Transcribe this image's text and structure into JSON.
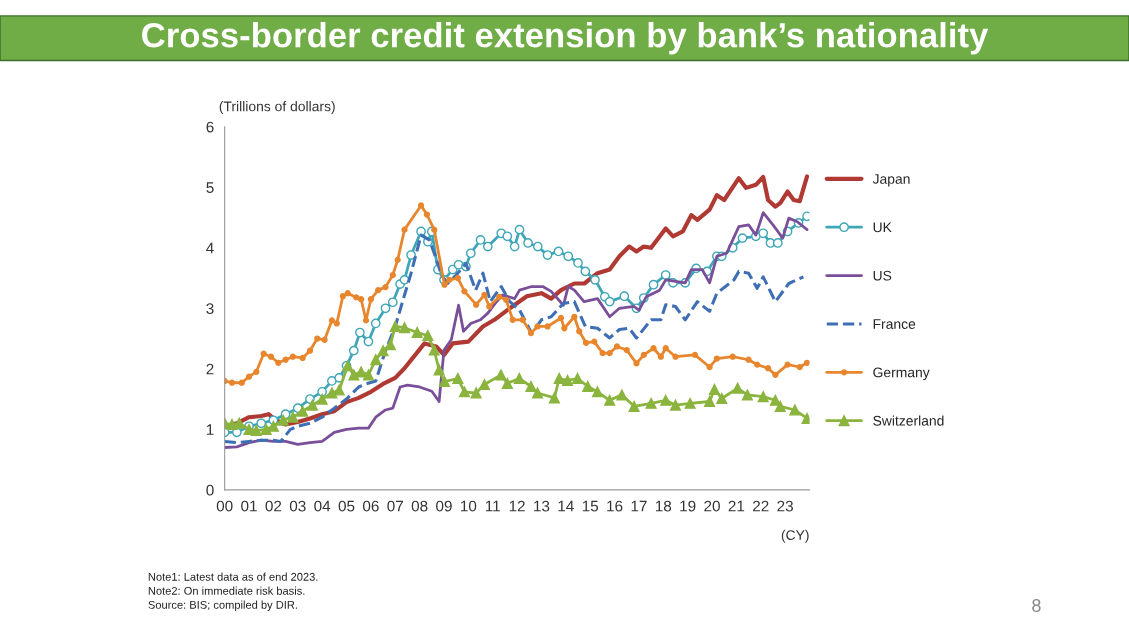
{
  "chart_data": {
    "type": "line",
    "title": "Cross-border credit extension by bank’s nationality",
    "ylabel": "(Trillions of dollars)",
    "xlabel": "(CY)",
    "xlim": [
      2000,
      2024
    ],
    "xticks": [
      {
        "value": 2000,
        "label": "00"
      },
      {
        "value": 2001,
        "label": "01"
      },
      {
        "value": 2002,
        "label": "02"
      },
      {
        "value": 2003,
        "label": "03"
      },
      {
        "value": 2004,
        "label": "04"
      },
      {
        "value": 2005,
        "label": "05"
      },
      {
        "value": 2006,
        "label": "06"
      },
      {
        "value": 2007,
        "label": "07"
      },
      {
        "value": 2008,
        "label": "08"
      },
      {
        "value": 2009,
        "label": "09"
      },
      {
        "value": 2010,
        "label": "10"
      },
      {
        "value": 2011,
        "label": "11"
      },
      {
        "value": 2012,
        "label": "12"
      },
      {
        "value": 2013,
        "label": "13"
      },
      {
        "value": 2014,
        "label": "14"
      },
      {
        "value": 2015,
        "label": "15"
      },
      {
        "value": 2016,
        "label": "16"
      },
      {
        "value": 2017,
        "label": "17"
      },
      {
        "value": 2018,
        "label": "18"
      },
      {
        "value": 2019,
        "label": "19"
      },
      {
        "value": 2020,
        "label": "20"
      },
      {
        "value": 2021,
        "label": "21"
      },
      {
        "value": 2022,
        "label": "22"
      },
      {
        "value": 2023,
        "label": "23"
      }
    ],
    "ylim": [
      0,
      6
    ],
    "yticks": [
      0,
      1,
      2,
      3,
      4,
      5,
      6
    ],
    "legend": "right",
    "series": [
      {
        "name": "Japan",
        "color": "#b03a33",
        "marker": "none",
        "line_style": "solid",
        "x": [
          2000.0,
          2000.5,
          2001.0,
          2001.5,
          2001.8,
          2002.1,
          2002.5,
          2003.0,
          2003.5,
          2004.0,
          2004.5,
          2005.0,
          2005.5,
          2006.0,
          2006.5,
          2007.0,
          2007.38,
          2008.2,
          2008.68,
          2009.0,
          2009.36,
          2010.0,
          2010.6,
          2011.07,
          2011.6,
          2012.4,
          2013.0,
          2013.4,
          2013.8,
          2014.35,
          2014.76,
          2015.3,
          2015.8,
          2016.2,
          2016.6,
          2016.9,
          2017.2,
          2017.5,
          2018.1,
          2018.4,
          2018.8,
          2019.15,
          2019.4,
          2019.9,
          2020.2,
          2020.5,
          2021.1,
          2021.4,
          2021.8,
          2022.1,
          2022.3,
          2022.6,
          2022.8,
          2023.1,
          2023.35,
          2023.6,
          2023.9
        ],
        "values": [
          1.05,
          1.1,
          1.2,
          1.22,
          1.25,
          1.15,
          1.08,
          1.12,
          1.18,
          1.25,
          1.3,
          1.45,
          1.52,
          1.62,
          1.75,
          1.85,
          2.01,
          2.42,
          2.37,
          2.23,
          2.42,
          2.45,
          2.7,
          2.81,
          2.97,
          3.2,
          3.25,
          3.16,
          3.3,
          3.41,
          3.41,
          3.58,
          3.64,
          3.86,
          4.02,
          3.94,
          4.02,
          4.0,
          4.32,
          4.19,
          4.27,
          4.54,
          4.46,
          4.63,
          4.87,
          4.79,
          5.15,
          4.99,
          5.04,
          5.17,
          4.79,
          4.68,
          4.74,
          4.93,
          4.79,
          4.77,
          5.18
        ]
      },
      {
        "name": "UK",
        "color": "#3fa6b8",
        "marker": "circle",
        "line_style": "solid",
        "x": [
          2000.0,
          2000.5,
          2001.0,
          2001.5,
          2002.0,
          2002.5,
          2003.0,
          2003.5,
          2004.0,
          2004.4,
          2004.7,
          2005.0,
          2005.3,
          2005.55,
          2005.9,
          2006.2,
          2006.6,
          2006.9,
          2007.2,
          2007.38,
          2007.65,
          2008.06,
          2008.34,
          2008.5,
          2008.75,
          2009.0,
          2009.36,
          2009.6,
          2009.9,
          2010.1,
          2010.5,
          2010.8,
          2011.35,
          2011.6,
          2011.9,
          2012.1,
          2012.45,
          2012.85,
          2013.25,
          2013.7,
          2014.1,
          2014.5,
          2014.8,
          2015.2,
          2015.6,
          2015.8,
          2016.4,
          2016.9,
          2017.2,
          2017.6,
          2018.1,
          2018.4,
          2018.9,
          2019.35,
          2019.8,
          2020.2,
          2020.4,
          2020.85,
          2021.25,
          2021.8,
          2022.1,
          2022.4,
          2022.7,
          2023.1,
          2023.55,
          2023.9
        ],
        "values": [
          0.95,
          0.95,
          1.05,
          1.1,
          1.15,
          1.25,
          1.35,
          1.5,
          1.62,
          1.8,
          1.85,
          2.05,
          2.3,
          2.6,
          2.45,
          2.75,
          3.0,
          3.1,
          3.4,
          3.47,
          3.88,
          4.27,
          4.1,
          4.27,
          3.64,
          3.47,
          3.64,
          3.72,
          3.69,
          3.91,
          4.13,
          4.02,
          4.24,
          4.19,
          4.02,
          4.3,
          4.08,
          4.02,
          3.88,
          3.94,
          3.86,
          3.75,
          3.61,
          3.47,
          3.19,
          3.11,
          3.2,
          3.0,
          3.17,
          3.39,
          3.55,
          3.42,
          3.42,
          3.66,
          3.61,
          3.86,
          3.86,
          4.0,
          4.16,
          4.19,
          4.24,
          4.08,
          4.08,
          4.27,
          4.41,
          4.52
        ]
      },
      {
        "name": "US",
        "color": "#7a4f9a",
        "marker": "none",
        "line_style": "solid",
        "x": [
          2000.0,
          2000.5,
          2001.0,
          2001.5,
          2002.0,
          2002.5,
          2003.0,
          2003.5,
          2004.0,
          2004.5,
          2005.0,
          2005.5,
          2005.9,
          2006.2,
          2006.6,
          2006.9,
          2007.2,
          2007.5,
          2008.0,
          2008.5,
          2008.8,
          2009.0,
          2009.3,
          2009.6,
          2009.8,
          2010.1,
          2010.5,
          2010.8,
          2011.1,
          2011.4,
          2011.9,
          2012.1,
          2012.6,
          2013.05,
          2013.4,
          2013.9,
          2014.1,
          2014.35,
          2014.75,
          2015.3,
          2015.8,
          2016.2,
          2016.8,
          2017.0,
          2017.3,
          2017.85,
          2018.1,
          2018.9,
          2019.15,
          2019.6,
          2019.9,
          2020.2,
          2020.6,
          2021.1,
          2021.5,
          2021.8,
          2022.1,
          2022.5,
          2022.9,
          2023.15,
          2023.5,
          2023.9
        ],
        "values": [
          0.7,
          0.71,
          0.78,
          0.82,
          0.8,
          0.8,
          0.75,
          0.78,
          0.8,
          0.95,
          1.0,
          1.02,
          1.02,
          1.2,
          1.32,
          1.35,
          1.7,
          1.73,
          1.7,
          1.63,
          1.46,
          2.31,
          2.48,
          3.05,
          2.62,
          2.75,
          2.81,
          2.92,
          3.08,
          3.22,
          3.16,
          3.3,
          3.36,
          3.36,
          3.28,
          3.05,
          3.36,
          3.3,
          3.11,
          3.16,
          2.86,
          3.0,
          3.03,
          2.97,
          3.19,
          3.3,
          3.47,
          3.42,
          3.64,
          3.64,
          3.42,
          3.86,
          3.91,
          4.35,
          4.38,
          4.21,
          4.58,
          4.38,
          4.16,
          4.49,
          4.43,
          4.3
        ]
      },
      {
        "name": "France",
        "color": "#3e6fb5",
        "marker": "none",
        "line_style": "dashed",
        "x": [
          2000.0,
          2000.5,
          2001.0,
          2001.5,
          2002.0,
          2002.3,
          2002.7,
          2003.0,
          2003.5,
          2004.0,
          2004.5,
          2005.0,
          2005.5,
          2005.8,
          2006.2,
          2006.6,
          2007.0,
          2007.38,
          2007.65,
          2008.06,
          2008.4,
          2008.6,
          2008.9,
          2009.15,
          2009.5,
          2009.9,
          2010.3,
          2010.6,
          2010.9,
          2011.35,
          2011.7,
          2012.1,
          2012.6,
          2013.0,
          2013.4,
          2013.9,
          2014.35,
          2014.8,
          2015.3,
          2015.8,
          2016.2,
          2016.6,
          2016.9,
          2017.5,
          2017.9,
          2018.1,
          2018.5,
          2018.9,
          2019.4,
          2019.9,
          2020.2,
          2020.9,
          2021.1,
          2021.5,
          2021.85,
          2022.1,
          2022.6,
          2023.15,
          2023.75
        ],
        "values": [
          0.8,
          0.78,
          0.8,
          0.82,
          0.82,
          0.8,
          1.0,
          1.05,
          1.1,
          1.2,
          1.35,
          1.5,
          1.7,
          1.75,
          1.8,
          2.3,
          2.7,
          3.22,
          3.58,
          4.21,
          4.13,
          3.91,
          3.55,
          3.41,
          3.55,
          3.74,
          3.3,
          3.58,
          3.11,
          3.36,
          3.11,
          2.97,
          2.59,
          2.81,
          2.86,
          3.08,
          3.11,
          2.7,
          2.67,
          2.51,
          2.65,
          2.67,
          2.51,
          2.81,
          2.81,
          3.06,
          3.03,
          2.81,
          3.11,
          2.95,
          3.25,
          3.47,
          3.61,
          3.58,
          3.33,
          3.52,
          3.11,
          3.41,
          3.52
        ]
      },
      {
        "name": "Germany",
        "color": "#e8862e",
        "marker": "circle",
        "line_style": "solid",
        "x": [
          2000.0,
          2000.3,
          2000.7,
          2001.0,
          2001.3,
          2001.6,
          2001.9,
          2002.2,
          2002.5,
          2002.8,
          2003.2,
          2003.5,
          2003.8,
          2004.1,
          2004.4,
          2004.6,
          2004.85,
          2005.05,
          2005.4,
          2005.6,
          2005.8,
          2006.0,
          2006.3,
          2006.6,
          2006.9,
          2007.1,
          2007.38,
          2008.06,
          2008.3,
          2008.6,
          2009.02,
          2009.22,
          2009.57,
          2009.84,
          2010.32,
          2010.66,
          2010.86,
          2011.27,
          2011.55,
          2011.82,
          2012.23,
          2012.57,
          2012.84,
          2013.25,
          2013.8,
          2013.94,
          2014.35,
          2014.55,
          2014.83,
          2015.17,
          2015.51,
          2015.8,
          2016.1,
          2016.5,
          2016.9,
          2017.2,
          2017.6,
          2017.9,
          2018.1,
          2018.5,
          2019.3,
          2019.9,
          2020.2,
          2020.85,
          2021.5,
          2021.85,
          2022.3,
          2022.6,
          2023.1,
          2023.6,
          2023.9
        ],
        "values": [
          1.8,
          1.77,
          1.77,
          1.87,
          1.95,
          2.25,
          2.2,
          2.1,
          2.15,
          2.2,
          2.18,
          2.3,
          2.5,
          2.48,
          2.8,
          2.75,
          3.2,
          3.25,
          3.18,
          3.15,
          2.8,
          3.15,
          3.3,
          3.35,
          3.55,
          3.8,
          4.3,
          4.7,
          4.55,
          4.3,
          3.39,
          3.47,
          3.5,
          3.28,
          3.06,
          3.22,
          3.03,
          3.19,
          3.14,
          2.81,
          2.81,
          2.59,
          2.7,
          2.7,
          2.84,
          2.67,
          2.86,
          2.62,
          2.43,
          2.45,
          2.26,
          2.26,
          2.37,
          2.31,
          2.09,
          2.23,
          2.34,
          2.2,
          2.34,
          2.2,
          2.23,
          2.03,
          2.17,
          2.2,
          2.15,
          2.07,
          2.01,
          1.9,
          2.07,
          2.03,
          2.1
        ]
      },
      {
        "name": "Switzerland",
        "color": "#8ab43e",
        "marker": "triangle",
        "line_style": "solid",
        "x": [
          2000.0,
          2000.3,
          2000.6,
          2001.0,
          2001.3,
          2001.7,
          2002.0,
          2002.4,
          2002.8,
          2003.2,
          2003.6,
          2004.0,
          2004.4,
          2004.7,
          2005.05,
          2005.3,
          2005.6,
          2005.9,
          2006.2,
          2006.5,
          2006.8,
          2007.0,
          2007.38,
          2007.9,
          2008.34,
          2008.6,
          2008.8,
          2009.02,
          2009.57,
          2009.84,
          2010.32,
          2010.66,
          2011.34,
          2011.6,
          2012.09,
          2012.57,
          2012.84,
          2013.53,
          2013.73,
          2014.07,
          2014.48,
          2014.9,
          2015.3,
          2015.8,
          2016.3,
          2016.8,
          2017.5,
          2018.1,
          2018.5,
          2019.1,
          2019.9,
          2020.1,
          2020.4,
          2021.05,
          2021.45,
          2022.1,
          2022.6,
          2022.8,
          2023.4,
          2023.9
        ],
        "values": [
          1.1,
          1.08,
          1.1,
          1.0,
          0.98,
          1.0,
          1.05,
          1.15,
          1.2,
          1.3,
          1.4,
          1.5,
          1.6,
          1.65,
          2.05,
          1.9,
          1.95,
          1.9,
          2.15,
          2.3,
          2.4,
          2.7,
          2.68,
          2.6,
          2.55,
          2.31,
          1.98,
          1.79,
          1.84,
          1.62,
          1.6,
          1.74,
          1.9,
          1.76,
          1.84,
          1.71,
          1.6,
          1.52,
          1.84,
          1.81,
          1.84,
          1.71,
          1.62,
          1.48,
          1.57,
          1.38,
          1.43,
          1.48,
          1.4,
          1.43,
          1.46,
          1.66,
          1.51,
          1.68,
          1.57,
          1.54,
          1.48,
          1.38,
          1.32,
          1.18
        ]
      }
    ],
    "annotations": [
      "Note1: Latest data as of end 2023.",
      "Note2: On immediate risk basis.",
      "Source: BIS; compiled by DIR.",
      "8"
    ]
  }
}
